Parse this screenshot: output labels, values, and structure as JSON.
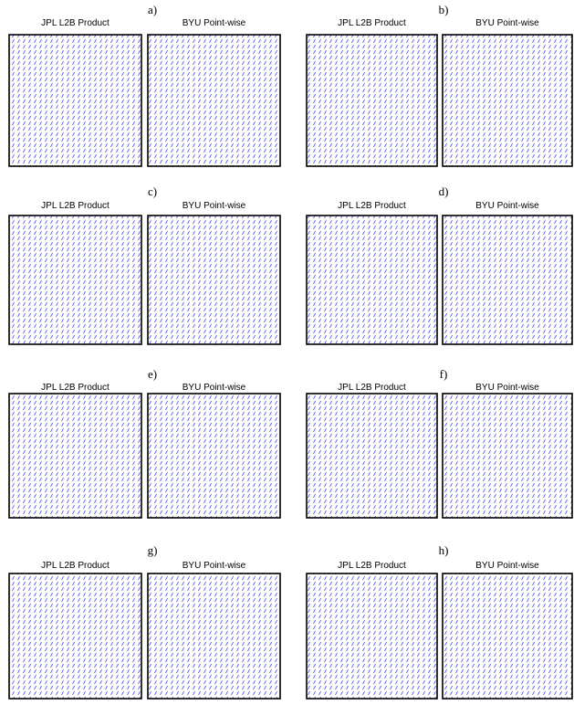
{
  "panels": [
    {
      "label": "a)",
      "plots": [
        {
          "title": "JPL L2B Product"
        },
        {
          "title": "BYU Point-wise"
        }
      ]
    },
    {
      "label": "b)",
      "plots": [
        {
          "title": "JPL L2B Product"
        },
        {
          "title": "BYU Point-wise"
        }
      ]
    },
    {
      "label": "c)",
      "plots": [
        {
          "title": "JPL L2B Product"
        },
        {
          "title": "BYU Point-wise"
        }
      ]
    },
    {
      "label": "d)",
      "plots": [
        {
          "title": "JPL L2B Product"
        },
        {
          "title": "BYU Point-wise"
        }
      ]
    },
    {
      "label": "e)",
      "plots": [
        {
          "title": "JPL L2B Product"
        },
        {
          "title": "BYU Point-wise"
        }
      ]
    },
    {
      "label": "f)",
      "plots": [
        {
          "title": "JPL L2B Product"
        },
        {
          "title": "BYU Point-wise"
        }
      ]
    },
    {
      "label": "g)",
      "plots": [
        {
          "title": "JPL L2B Product"
        },
        {
          "title": "BYU Point-wise"
        }
      ]
    },
    {
      "label": "h)",
      "plots": [
        {
          "title": "JPL L2B Product"
        },
        {
          "title": "BYU Point-wise"
        }
      ]
    }
  ]
}
